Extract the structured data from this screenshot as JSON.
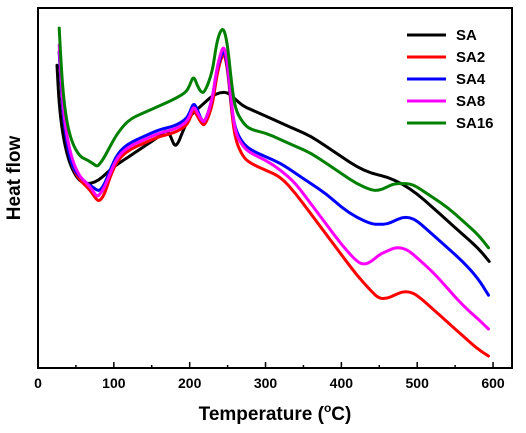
{
  "chart_data": {
    "type": "line",
    "title": "",
    "xlabel": {
      "main": "Temperature (",
      "degree": "o",
      "unit": "C)"
    },
    "ylabel": "Heat flow",
    "xlim": [
      0,
      625
    ],
    "ylim": [
      0,
      100
    ],
    "xticks": [
      0,
      100,
      200,
      300,
      400,
      500,
      600
    ],
    "xtick_labels": [
      "0",
      "100",
      "200",
      "300",
      "400",
      "500",
      "600"
    ],
    "yticks_shown": false,
    "grid": false,
    "legend_position": "top-right",
    "series": [
      {
        "name": "SA",
        "color": "#000000",
        "points": [
          [
            25,
            86
          ],
          [
            28,
            74
          ],
          [
            33,
            65
          ],
          [
            40,
            58
          ],
          [
            50,
            53
          ],
          [
            60,
            51
          ],
          [
            70,
            51
          ],
          [
            80,
            52
          ],
          [
            90,
            54
          ],
          [
            100,
            56
          ],
          [
            120,
            59
          ],
          [
            140,
            62
          ],
          [
            160,
            65
          ],
          [
            170,
            67
          ],
          [
            175,
            65
          ],
          [
            180,
            62
          ],
          [
            185,
            63
          ],
          [
            190,
            66
          ],
          [
            200,
            71
          ],
          [
            210,
            73
          ],
          [
            220,
            75
          ],
          [
            230,
            77
          ],
          [
            240,
            78
          ],
          [
            250,
            78
          ],
          [
            260,
            76
          ],
          [
            270,
            74
          ],
          [
            280,
            73
          ],
          [
            300,
            71
          ],
          [
            320,
            69
          ],
          [
            340,
            67
          ],
          [
            360,
            65
          ],
          [
            380,
            62
          ],
          [
            400,
            59
          ],
          [
            420,
            56
          ],
          [
            440,
            54
          ],
          [
            460,
            53
          ],
          [
            480,
            51
          ],
          [
            500,
            48
          ],
          [
            520,
            44
          ],
          [
            540,
            40
          ],
          [
            560,
            36
          ],
          [
            580,
            32
          ],
          [
            595,
            28
          ]
        ]
      },
      {
        "name": "SA2",
        "color": "#ff0000",
        "points": [
          [
            28,
            90
          ],
          [
            30,
            82
          ],
          [
            33,
            72
          ],
          [
            38,
            63
          ],
          [
            45,
            56
          ],
          [
            55,
            52
          ],
          [
            65,
            50
          ],
          [
            72,
            48
          ],
          [
            78,
            46
          ],
          [
            82,
            46
          ],
          [
            88,
            48
          ],
          [
            95,
            53
          ],
          [
            105,
            58
          ],
          [
            120,
            61
          ],
          [
            140,
            63
          ],
          [
            160,
            65
          ],
          [
            180,
            66
          ],
          [
            195,
            68
          ],
          [
            200,
            70
          ],
          [
            205,
            73
          ],
          [
            210,
            71
          ],
          [
            215,
            69
          ],
          [
            220,
            68
          ],
          [
            230,
            74
          ],
          [
            235,
            82
          ],
          [
            240,
            87
          ],
          [
            245,
            90
          ],
          [
            250,
            85
          ],
          [
            255,
            73
          ],
          [
            260,
            64
          ],
          [
            270,
            59
          ],
          [
            280,
            57
          ],
          [
            300,
            55
          ],
          [
            320,
            53
          ],
          [
            340,
            48
          ],
          [
            360,
            42
          ],
          [
            380,
            36
          ],
          [
            400,
            30
          ],
          [
            420,
            24
          ],
          [
            440,
            19
          ],
          [
            450,
            17
          ],
          [
            460,
            17
          ],
          [
            470,
            18
          ],
          [
            480,
            19
          ],
          [
            490,
            19
          ],
          [
            500,
            18
          ],
          [
            520,
            14
          ],
          [
            540,
            10
          ],
          [
            560,
            6
          ],
          [
            580,
            2
          ],
          [
            594,
            0
          ]
        ]
      },
      {
        "name": "SA4",
        "color": "#0000ff",
        "points": [
          [
            28,
            90
          ],
          [
            30,
            82
          ],
          [
            33,
            72
          ],
          [
            38,
            63
          ],
          [
            45,
            56
          ],
          [
            55,
            53
          ],
          [
            65,
            51
          ],
          [
            72,
            50
          ],
          [
            78,
            49
          ],
          [
            82,
            49
          ],
          [
            88,
            51
          ],
          [
            95,
            55
          ],
          [
            105,
            60
          ],
          [
            120,
            63
          ],
          [
            140,
            65
          ],
          [
            160,
            67
          ],
          [
            180,
            68
          ],
          [
            195,
            70
          ],
          [
            200,
            72
          ],
          [
            205,
            75
          ],
          [
            210,
            73
          ],
          [
            215,
            70
          ],
          [
            220,
            69
          ],
          [
            230,
            76
          ],
          [
            235,
            84
          ],
          [
            240,
            88
          ],
          [
            245,
            91
          ],
          [
            250,
            86
          ],
          [
            255,
            74
          ],
          [
            260,
            67
          ],
          [
            270,
            63
          ],
          [
            280,
            61
          ],
          [
            300,
            59
          ],
          [
            320,
            57
          ],
          [
            340,
            54
          ],
          [
            360,
            51
          ],
          [
            380,
            48
          ],
          [
            400,
            44
          ],
          [
            420,
            41
          ],
          [
            440,
            39
          ],
          [
            450,
            39
          ],
          [
            460,
            39
          ],
          [
            470,
            40
          ],
          [
            480,
            41
          ],
          [
            490,
            41
          ],
          [
            500,
            40
          ],
          [
            520,
            36
          ],
          [
            540,
            32
          ],
          [
            560,
            28
          ],
          [
            580,
            23
          ],
          [
            594,
            18
          ]
        ]
      },
      {
        "name": "SA8",
        "color": "#ff00ff",
        "points": [
          [
            28,
            92
          ],
          [
            30,
            84
          ],
          [
            33,
            74
          ],
          [
            38,
            65
          ],
          [
            45,
            58
          ],
          [
            55,
            53
          ],
          [
            65,
            51
          ],
          [
            72,
            49
          ],
          [
            78,
            47
          ],
          [
            82,
            48
          ],
          [
            88,
            50
          ],
          [
            95,
            54
          ],
          [
            105,
            59
          ],
          [
            120,
            62
          ],
          [
            140,
            64
          ],
          [
            160,
            66
          ],
          [
            180,
            67
          ],
          [
            195,
            69
          ],
          [
            200,
            71
          ],
          [
            205,
            74
          ],
          [
            210,
            72
          ],
          [
            215,
            70
          ],
          [
            220,
            69
          ],
          [
            230,
            76
          ],
          [
            235,
            84
          ],
          [
            240,
            89
          ],
          [
            245,
            92
          ],
          [
            250,
            87
          ],
          [
            255,
            75
          ],
          [
            260,
            66
          ],
          [
            270,
            62
          ],
          [
            280,
            60
          ],
          [
            300,
            58
          ],
          [
            320,
            55
          ],
          [
            340,
            51
          ],
          [
            360,
            45
          ],
          [
            380,
            39
          ],
          [
            400,
            33
          ],
          [
            420,
            28
          ],
          [
            430,
            27
          ],
          [
            440,
            28
          ],
          [
            450,
            30
          ],
          [
            460,
            31
          ],
          [
            470,
            32
          ],
          [
            480,
            32
          ],
          [
            490,
            31
          ],
          [
            500,
            29
          ],
          [
            520,
            25
          ],
          [
            540,
            20
          ],
          [
            560,
            15
          ],
          [
            580,
            11
          ],
          [
            594,
            8
          ]
        ]
      },
      {
        "name": "SA16",
        "color": "#008000",
        "points": [
          [
            28,
            97
          ],
          [
            30,
            88
          ],
          [
            33,
            78
          ],
          [
            38,
            69
          ],
          [
            45,
            63
          ],
          [
            55,
            59
          ],
          [
            65,
            58
          ],
          [
            72,
            57
          ],
          [
            78,
            56
          ],
          [
            82,
            57
          ],
          [
            88,
            59
          ],
          [
            95,
            62
          ],
          [
            105,
            66
          ],
          [
            120,
            70
          ],
          [
            140,
            72
          ],
          [
            160,
            74
          ],
          [
            180,
            76
          ],
          [
            195,
            78
          ],
          [
            200,
            80
          ],
          [
            205,
            83
          ],
          [
            210,
            80
          ],
          [
            215,
            78
          ],
          [
            220,
            78
          ],
          [
            230,
            84
          ],
          [
            235,
            92
          ],
          [
            240,
            96
          ],
          [
            245,
            97
          ],
          [
            250,
            92
          ],
          [
            255,
            81
          ],
          [
            260,
            73
          ],
          [
            270,
            69
          ],
          [
            280,
            67
          ],
          [
            300,
            66
          ],
          [
            320,
            64
          ],
          [
            340,
            62
          ],
          [
            360,
            60
          ],
          [
            380,
            57
          ],
          [
            400,
            54
          ],
          [
            420,
            51
          ],
          [
            440,
            49
          ],
          [
            450,
            49
          ],
          [
            460,
            50
          ],
          [
            470,
            51
          ],
          [
            480,
            51
          ],
          [
            490,
            51
          ],
          [
            500,
            50
          ],
          [
            520,
            47
          ],
          [
            540,
            44
          ],
          [
            560,
            40
          ],
          [
            580,
            36
          ],
          [
            594,
            32
          ]
        ]
      }
    ]
  }
}
